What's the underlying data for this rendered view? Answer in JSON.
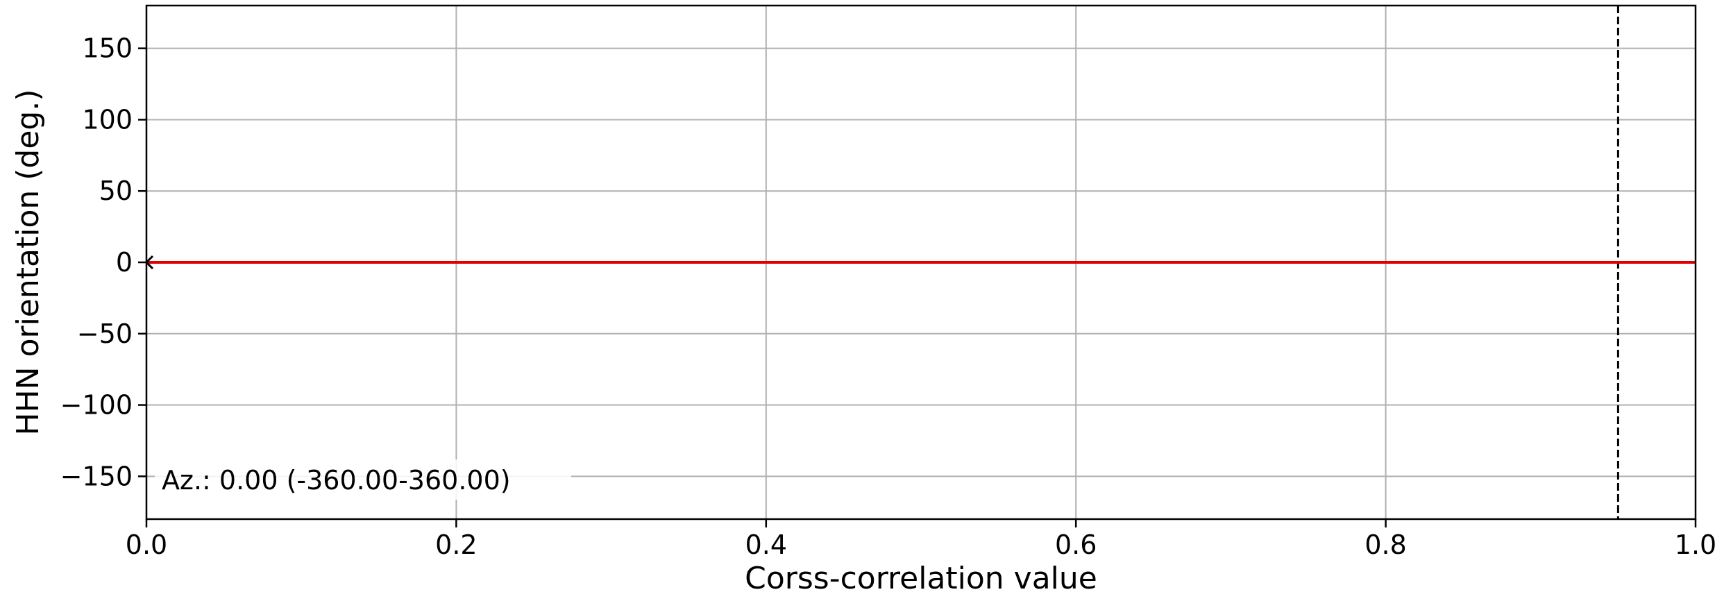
{
  "chart_data": {
    "type": "line",
    "title": "",
    "xlabel": "Corss-correlation value",
    "ylabel": "HHN orientation (deg.)",
    "xlim": [
      0.0,
      1.0
    ],
    "ylim": [
      -180,
      180
    ],
    "xticks": [
      0.0,
      0.2,
      0.4,
      0.6,
      0.8,
      1.0
    ],
    "xtick_labels": [
      "0.0",
      "0.2",
      "0.4",
      "0.6",
      "0.8",
      "1.0"
    ],
    "yticks": [
      150,
      100,
      50,
      0,
      -50,
      -100,
      -150
    ],
    "ytick_labels": [
      "150",
      "100",
      "50",
      "0",
      "−50",
      "−100",
      "−150"
    ],
    "grid": true,
    "series": [
      {
        "color": "#e00000",
        "x": [
          0.0,
          1.0
        ],
        "y": [
          0,
          0
        ]
      }
    ],
    "markers": [
      {
        "symbol": "<",
        "x": 0.0,
        "y": 0,
        "color": "#000000"
      }
    ],
    "vlines": [
      {
        "x": 0.95,
        "style": "dashed",
        "color": "#000000"
      }
    ],
    "annotation": {
      "text": "Az.: 0.00 (-360.00-360.00)",
      "position": "bottom-left"
    }
  }
}
